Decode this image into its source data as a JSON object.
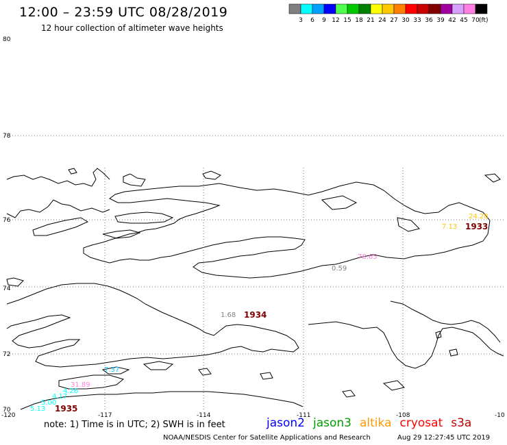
{
  "header": {
    "title": "12:00 – 23:59 UTC 08/28/2019",
    "subtitle": "12 hour collection of altimeter wave heights"
  },
  "legend": {
    "unit": "(ft)",
    "bins": [
      {
        "label": "3",
        "color": "#808080"
      },
      {
        "label": "6",
        "color": "#00ffff"
      },
      {
        "label": "9",
        "color": "#00a0ff"
      },
      {
        "label": "12",
        "color": "#0000ff"
      },
      {
        "label": "15",
        "color": "#50ff50"
      },
      {
        "label": "18",
        "color": "#00c800"
      },
      {
        "label": "21",
        "color": "#008000"
      },
      {
        "label": "24",
        "color": "#ffff00"
      },
      {
        "label": "27",
        "color": "#ffc800"
      },
      {
        "label": "30",
        "color": "#ff8000"
      },
      {
        "label": "33",
        "color": "#ff0000"
      },
      {
        "label": "36",
        "color": "#c80000"
      },
      {
        "label": "39",
        "color": "#800000"
      },
      {
        "label": "42",
        "color": "#a000a0"
      },
      {
        "label": "45",
        "color": "#d8a0ff"
      },
      {
        "label": "70",
        "color": "#ff80e0"
      },
      {
        "label": "",
        "color": "#000000"
      }
    ]
  },
  "axes": {
    "lat_labels": [
      "80",
      "78",
      "76",
      "74",
      "72",
      "70"
    ],
    "lon_labels": [
      "-120",
      "-117",
      "-114",
      "-111",
      "-108",
      "-10"
    ]
  },
  "observations": [
    {
      "label": "24.28",
      "color": "#ffc800"
    },
    {
      "label": "7.13",
      "color": "#ffc800"
    },
    {
      "label": "78.65",
      "color": "#ff80e0"
    },
    {
      "label": "0.59",
      "color": "#808080"
    },
    {
      "label": "1.68",
      "color": "#808080"
    },
    {
      "label": "7.37",
      "color": "#00c8ff"
    },
    {
      "label": "31.89",
      "color": "#ff80e0"
    },
    {
      "label": "4.26",
      "color": "#00ffff"
    },
    {
      "label": "4.17",
      "color": "#00ffff"
    },
    {
      "label": "5.00",
      "color": "#00ffff"
    },
    {
      "label": "5.13",
      "color": "#00ffff"
    }
  ],
  "track_labels": [
    {
      "label": "1933",
      "color": "#800000"
    },
    {
      "label": "1934",
      "color": "#800000"
    },
    {
      "label": "1935",
      "color": "#800000"
    }
  ],
  "footer": {
    "note": "note:  1) Time is in UTC;  2) SWH is in feet",
    "credit": "NOAA/NESDIS Center for Satellite Applications and Research",
    "timestamp": "Aug 29 12:27:45 UTC 2019"
  },
  "satellites": [
    {
      "name": "jason2",
      "color": "#0000ff"
    },
    {
      "name": "jason3",
      "color": "#00a000"
    },
    {
      "name": "altika",
      "color": "#ff9900"
    },
    {
      "name": "cryosat",
      "color": "#ff0000"
    },
    {
      "name": "s3a",
      "color": "#c00000"
    }
  ]
}
